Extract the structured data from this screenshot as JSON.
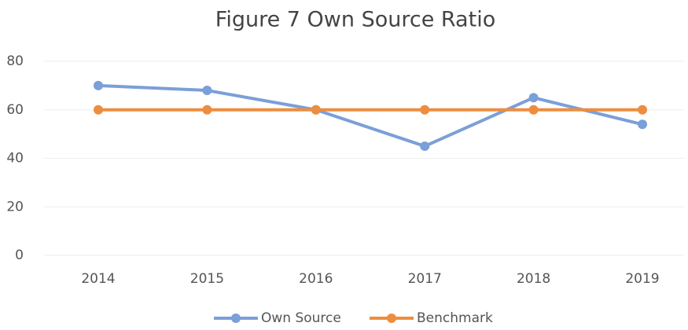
{
  "chart_data": {
    "type": "line",
    "title": "Figure 7 Own Source Ratio",
    "categories": [
      "2014",
      "2015",
      "2016",
      "2017",
      "2018",
      "2019"
    ],
    "series": [
      {
        "name": "Own Source",
        "color": "#7b9fd8",
        "values": [
          70,
          68,
          60,
          45,
          65,
          54
        ]
      },
      {
        "name": "Benchmark",
        "color": "#ed8d3f",
        "values": [
          60,
          60,
          60,
          60,
          60,
          60
        ]
      }
    ],
    "ylim": [
      0,
      80
    ],
    "yticks": [
      0,
      20,
      40,
      60,
      80
    ],
    "grid": true,
    "legend": "bottom"
  }
}
